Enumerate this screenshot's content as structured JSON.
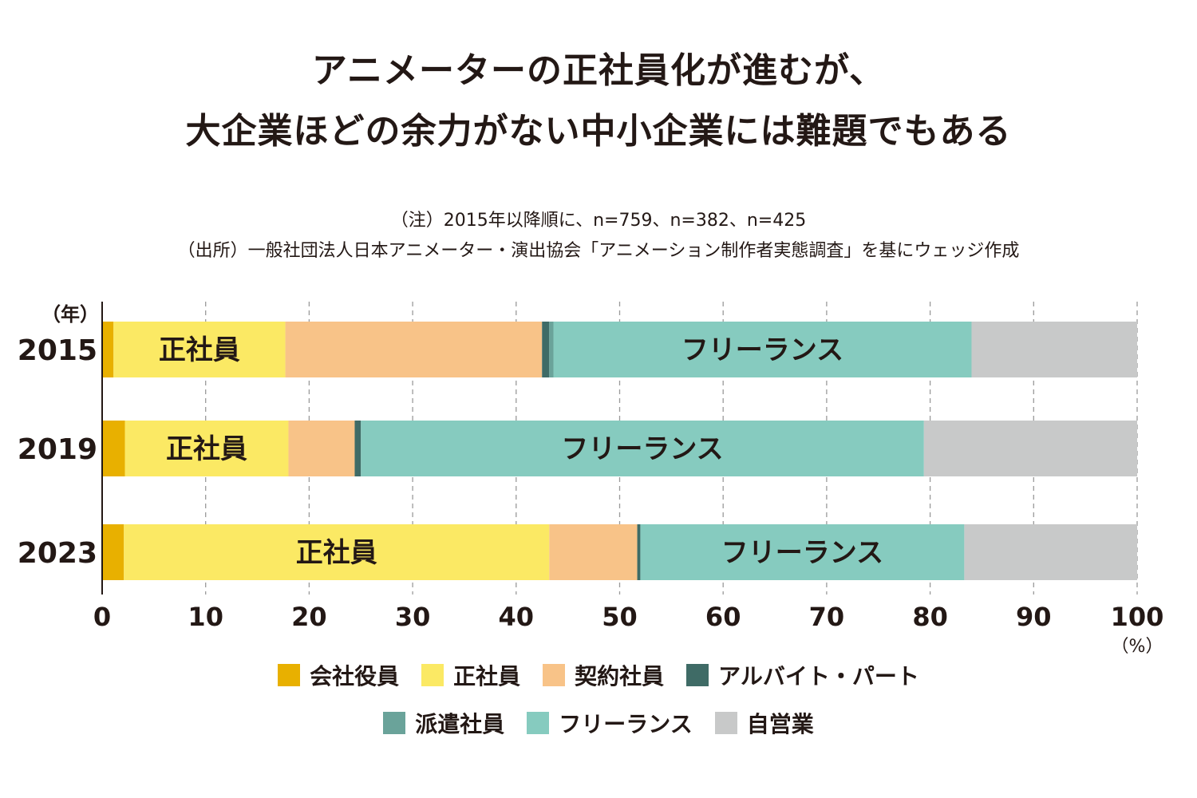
{
  "chart_data": {
    "type": "bar",
    "orientation": "horizontal-stacked",
    "title": [
      "アニメーターの正社員化が進むが、",
      "大企業ほどの余力がない中小企業には難題でもある"
    ],
    "notes": [
      "（注）2015年以降順に、n=759、n=382、n=425",
      "（出所）一般社団法人日本アニメーター・演出協会「アニメーション制作者実態調査」を基にウェッジ作成"
    ],
    "ylabel": "（年）",
    "xlabel": "（%）",
    "xlim": [
      0,
      100
    ],
    "xticks": [
      "0",
      "10",
      "20",
      "30",
      "40",
      "50",
      "60",
      "70",
      "80",
      "90",
      "100"
    ],
    "grid": true,
    "categories": [
      "2015",
      "2019",
      "2023"
    ],
    "series": [
      {
        "name": "会社役員",
        "color": "#e8b000",
        "values": [
          1.1,
          2.2,
          2.1
        ]
      },
      {
        "name": "正社員",
        "color": "#fbe964",
        "values": [
          16.6,
          15.8,
          41.1
        ]
      },
      {
        "name": "契約社員",
        "color": "#f8c388",
        "values": [
          24.8,
          6.4,
          8.5
        ]
      },
      {
        "name": "アルバイト・パート",
        "color": "#3f6b66",
        "values": [
          0.7,
          0.6,
          0.3
        ]
      },
      {
        "name": "派遣社員",
        "color": "#6aa39a",
        "values": [
          0.4,
          0.0,
          0.0
        ]
      },
      {
        "name": "フリーランス",
        "color": "#86cbbf",
        "values": [
          40.4,
          54.4,
          31.3
        ]
      },
      {
        "name": "自営業",
        "color": "#c8c9c9",
        "values": [
          16.0,
          20.6,
          16.7
        ]
      }
    ],
    "segment_labels": {
      "正社員": "正社員",
      "フリーランス": "フリーランス"
    },
    "legend_placement": "bottom"
  }
}
